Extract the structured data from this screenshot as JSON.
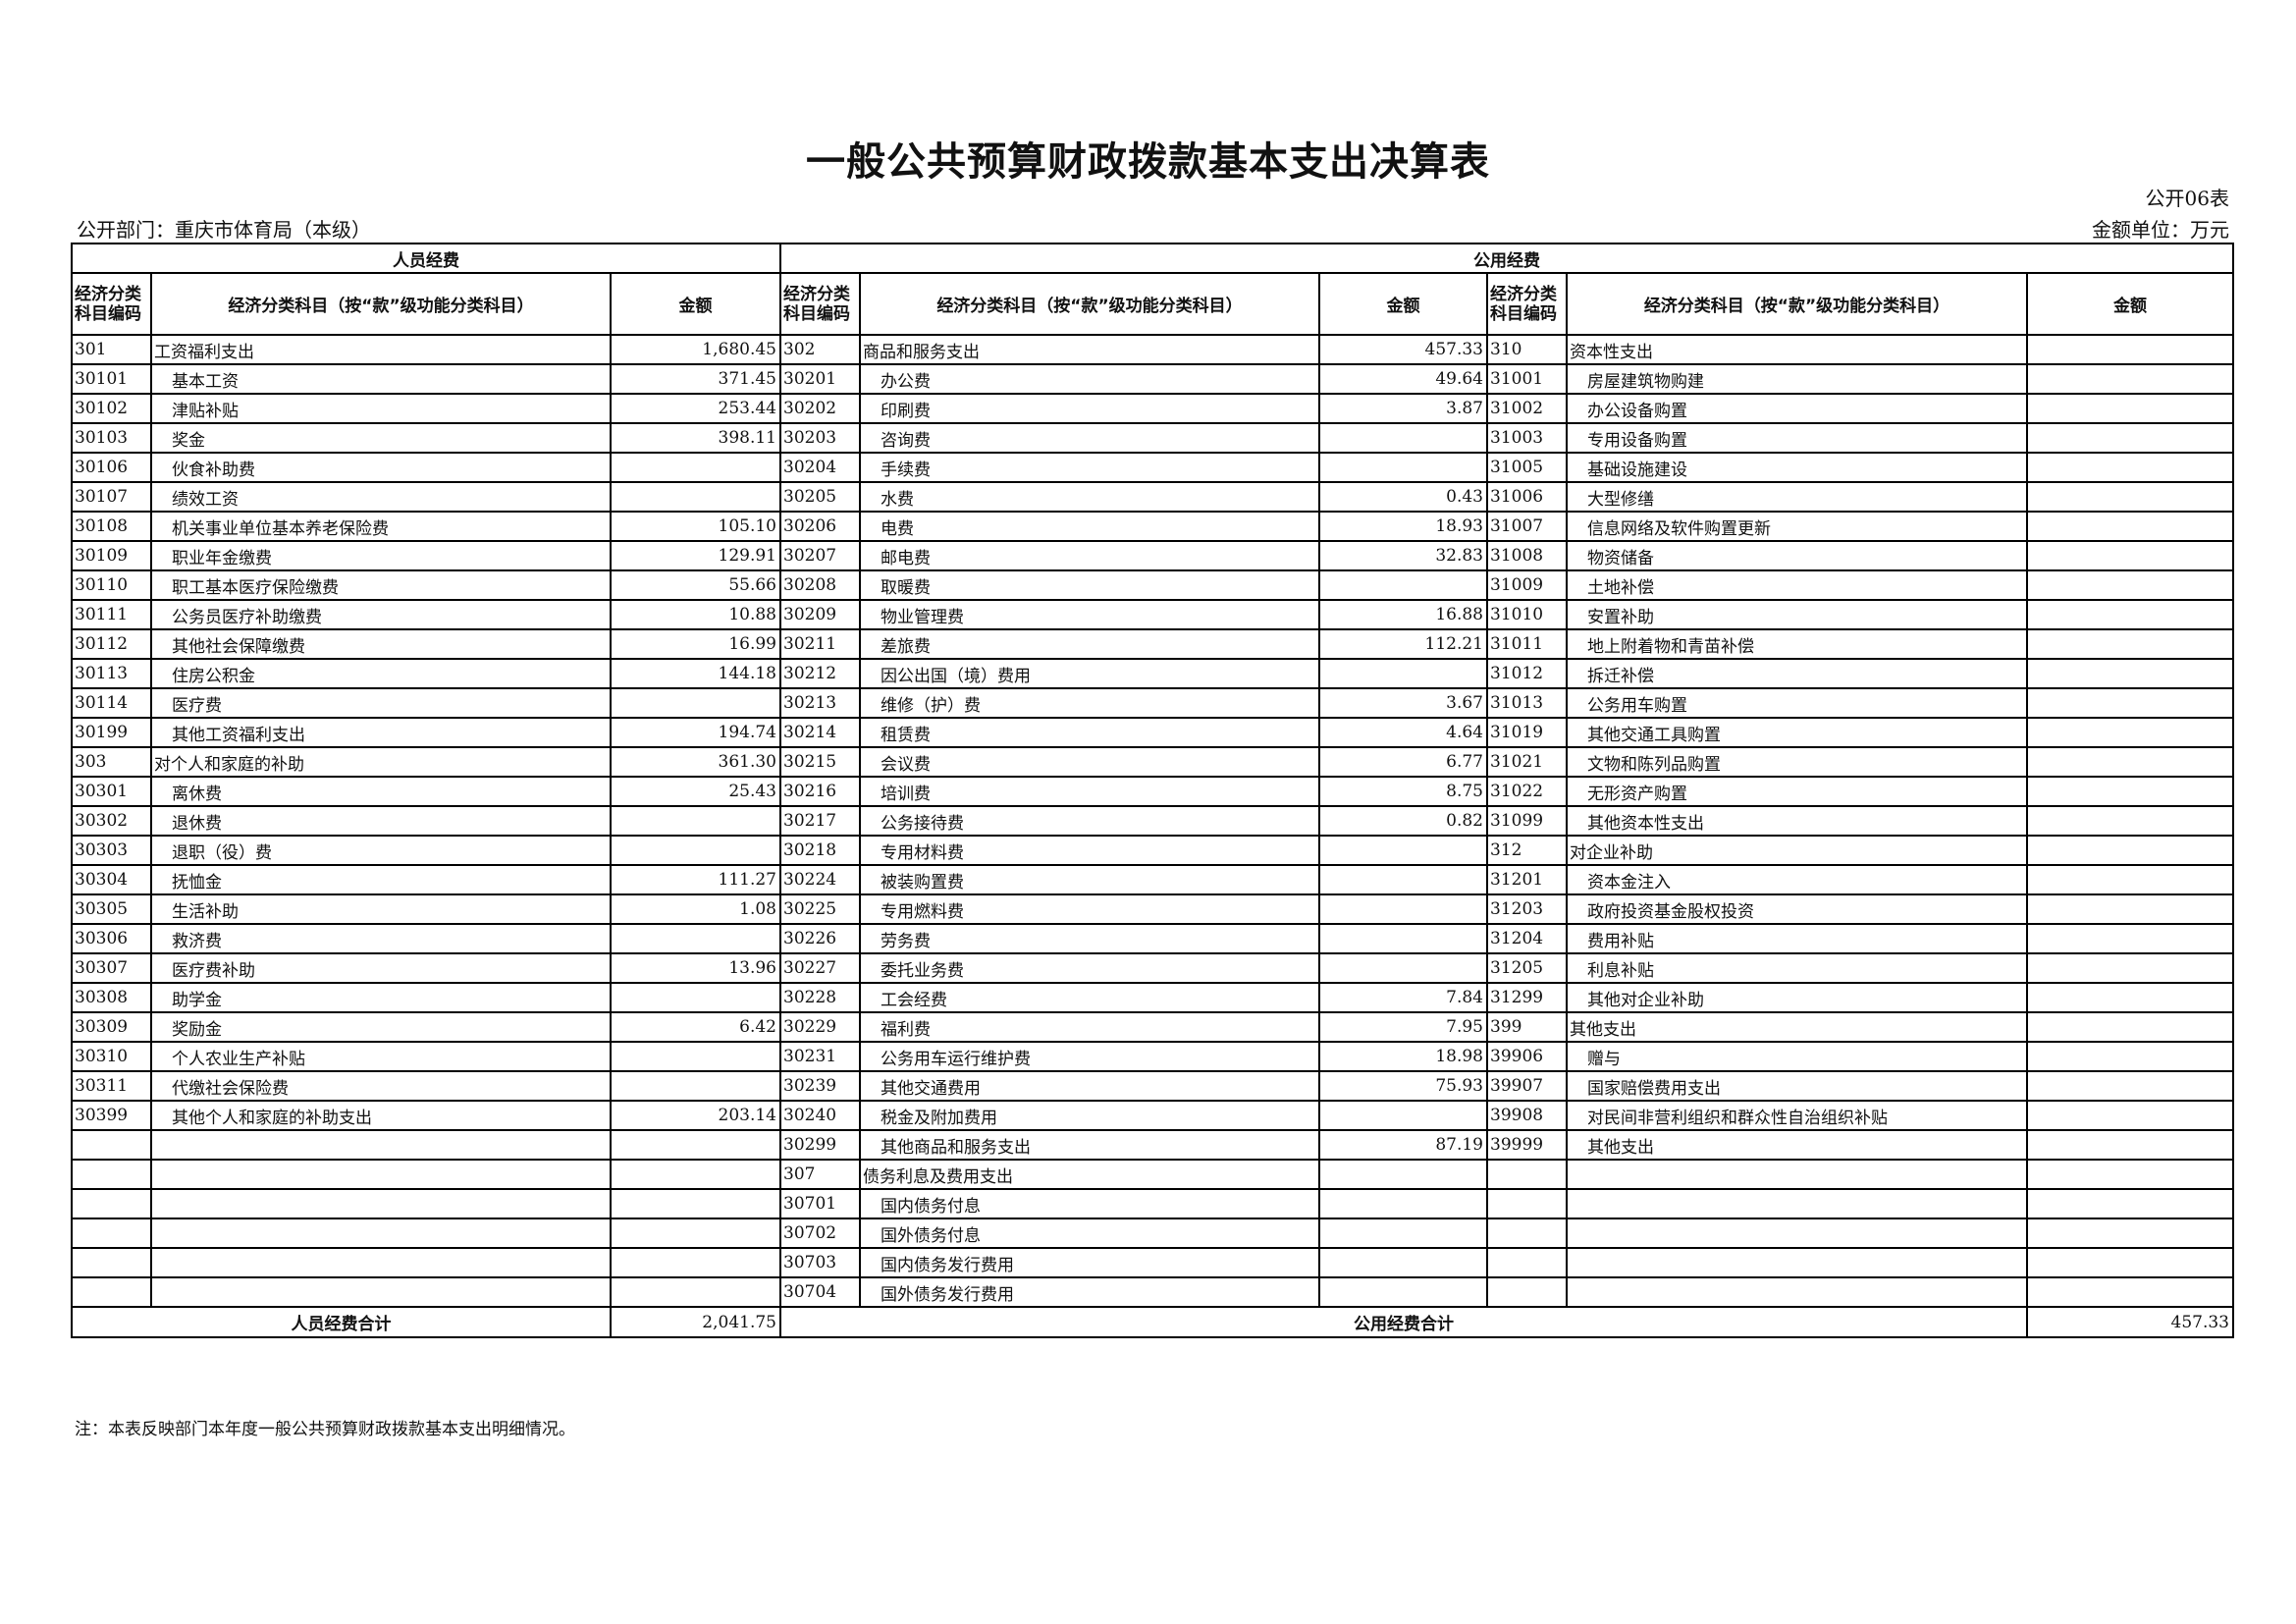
{
  "title": "一般公共预算财政拨款基本支出决算表",
  "form_no": "公开06表",
  "department": "公开部门：重庆市体育局（本级）",
  "unit": "金额单位：万元",
  "headers": {
    "personnel": "人员经费",
    "public": "公用经费",
    "code": "经济分类科目编码",
    "item": "经济分类科目（按“款”级功能分类科目）",
    "amount": "金额"
  },
  "personnel_rows": [
    [
      "301",
      "工资福利支出",
      "1,680.45"
    ],
    [
      "30101",
      "基本工资",
      "371.45"
    ],
    [
      "30102",
      "津贴补贴",
      "253.44"
    ],
    [
      "30103",
      "奖金",
      "398.11"
    ],
    [
      "30106",
      "伙食补助费",
      ""
    ],
    [
      "30107",
      "绩效工资",
      ""
    ],
    [
      "30108",
      "机关事业单位基本养老保险费",
      "105.10"
    ],
    [
      "30109",
      "职业年金缴费",
      "129.91"
    ],
    [
      "30110",
      "职工基本医疗保险缴费",
      "55.66"
    ],
    [
      "30111",
      "公务员医疗补助缴费",
      "10.88"
    ],
    [
      "30112",
      "其他社会保障缴费",
      "16.99"
    ],
    [
      "30113",
      "住房公积金",
      "144.18"
    ],
    [
      "30114",
      "医疗费",
      ""
    ],
    [
      "30199",
      "其他工资福利支出",
      "194.74"
    ],
    [
      "303",
      "对个人和家庭的补助",
      "361.30"
    ],
    [
      "30301",
      "离休费",
      "25.43"
    ],
    [
      "30302",
      "退休费",
      ""
    ],
    [
      "30303",
      "退职（役）费",
      ""
    ],
    [
      "30304",
      "抚恤金",
      "111.27"
    ],
    [
      "30305",
      "生活补助",
      "1.08"
    ],
    [
      "30306",
      "救济费",
      ""
    ],
    [
      "30307",
      "医疗费补助",
      "13.96"
    ],
    [
      "30308",
      "助学金",
      ""
    ],
    [
      "30309",
      "奖励金",
      "6.42"
    ],
    [
      "30310",
      "个人农业生产补贴",
      ""
    ],
    [
      "30311",
      "代缴社会保险费",
      ""
    ],
    [
      "30399",
      "其他个人和家庭的补助支出",
      "203.14"
    ],
    [
      "",
      "",
      ""
    ],
    [
      "",
      "",
      ""
    ],
    [
      "",
      "",
      ""
    ],
    [
      "",
      "",
      ""
    ],
    [
      "",
      "",
      ""
    ],
    [
      "",
      "",
      ""
    ]
  ],
  "public_rows_a": [
    [
      "302",
      "商品和服务支出",
      "457.33"
    ],
    [
      "30201",
      "办公费",
      "49.64"
    ],
    [
      "30202",
      "印刷费",
      "3.87"
    ],
    [
      "30203",
      "咨询费",
      ""
    ],
    [
      "30204",
      "手续费",
      ""
    ],
    [
      "30205",
      "水费",
      "0.43"
    ],
    [
      "30206",
      "电费",
      "18.93"
    ],
    [
      "30207",
      "邮电费",
      "32.83"
    ],
    [
      "30208",
      "取暖费",
      ""
    ],
    [
      "30209",
      "物业管理费",
      "16.88"
    ],
    [
      "30211",
      "差旅费",
      "112.21"
    ],
    [
      "30212",
      "因公出国（境）费用",
      ""
    ],
    [
      "30213",
      "维修（护）费",
      "3.67"
    ],
    [
      "30214",
      "租赁费",
      "4.64"
    ],
    [
      "30215",
      "会议费",
      "6.77"
    ],
    [
      "30216",
      "培训费",
      "8.75"
    ],
    [
      "30217",
      "公务接待费",
      "0.82"
    ],
    [
      "30218",
      "专用材料费",
      ""
    ],
    [
      "30224",
      "被装购置费",
      ""
    ],
    [
      "30225",
      "专用燃料费",
      ""
    ],
    [
      "30226",
      "劳务费",
      ""
    ],
    [
      "30227",
      "委托业务费",
      ""
    ],
    [
      "30228",
      "工会经费",
      "7.84"
    ],
    [
      "30229",
      "福利费",
      "7.95"
    ],
    [
      "30231",
      "公务用车运行维护费",
      "18.98"
    ],
    [
      "30239",
      "其他交通费用",
      "75.93"
    ],
    [
      "30240",
      "税金及附加费用",
      ""
    ],
    [
      "30299",
      "其他商品和服务支出",
      "87.19"
    ],
    [
      "307",
      "债务利息及费用支出",
      ""
    ],
    [
      "30701",
      "国内债务付息",
      ""
    ],
    [
      "30702",
      "国外债务付息",
      ""
    ],
    [
      "30703",
      "国内债务发行费用",
      ""
    ],
    [
      "30704",
      "国外债务发行费用",
      ""
    ]
  ],
  "public_rows_b": [
    [
      "310",
      "资本性支出",
      ""
    ],
    [
      "31001",
      "房屋建筑物购建",
      ""
    ],
    [
      "31002",
      "办公设备购置",
      ""
    ],
    [
      "31003",
      "专用设备购置",
      ""
    ],
    [
      "31005",
      "基础设施建设",
      ""
    ],
    [
      "31006",
      "大型修缮",
      ""
    ],
    [
      "31007",
      "信息网络及软件购置更新",
      ""
    ],
    [
      "31008",
      "物资储备",
      ""
    ],
    [
      "31009",
      "土地补偿",
      ""
    ],
    [
      "31010",
      "安置补助",
      ""
    ],
    [
      "31011",
      "地上附着物和青苗补偿",
      ""
    ],
    [
      "31012",
      "拆迁补偿",
      ""
    ],
    [
      "31013",
      "公务用车购置",
      ""
    ],
    [
      "31019",
      "其他交通工具购置",
      ""
    ],
    [
      "31021",
      "文物和陈列品购置",
      ""
    ],
    [
      "31022",
      "无形资产购置",
      ""
    ],
    [
      "31099",
      "其他资本性支出",
      ""
    ],
    [
      "312",
      "对企业补助",
      ""
    ],
    [
      "31201",
      "资本金注入",
      ""
    ],
    [
      "31203",
      "政府投资基金股权投资",
      ""
    ],
    [
      "31204",
      "费用补贴",
      ""
    ],
    [
      "31205",
      "利息补贴",
      ""
    ],
    [
      "31299",
      "其他对企业补助",
      ""
    ],
    [
      "399",
      "其他支出",
      ""
    ],
    [
      "39906",
      "赠与",
      ""
    ],
    [
      "39907",
      "国家赔偿费用支出",
      ""
    ],
    [
      "39908",
      "对民间非营利组织和群众性自治组织补贴",
      ""
    ],
    [
      "39999",
      "其他支出",
      ""
    ],
    [
      "",
      "",
      ""
    ],
    [
      "",
      "",
      ""
    ],
    [
      "",
      "",
      ""
    ],
    [
      "",
      "",
      ""
    ],
    [
      "",
      "",
      ""
    ]
  ],
  "totals": {
    "personnel_label": "人员经费合计",
    "personnel_amount": "2,041.75",
    "public_label": "公用经费合计",
    "public_amount": "457.33"
  },
  "note": "注：本表反映部门本年度一般公共预算财政拨款基本支出明细情况。"
}
